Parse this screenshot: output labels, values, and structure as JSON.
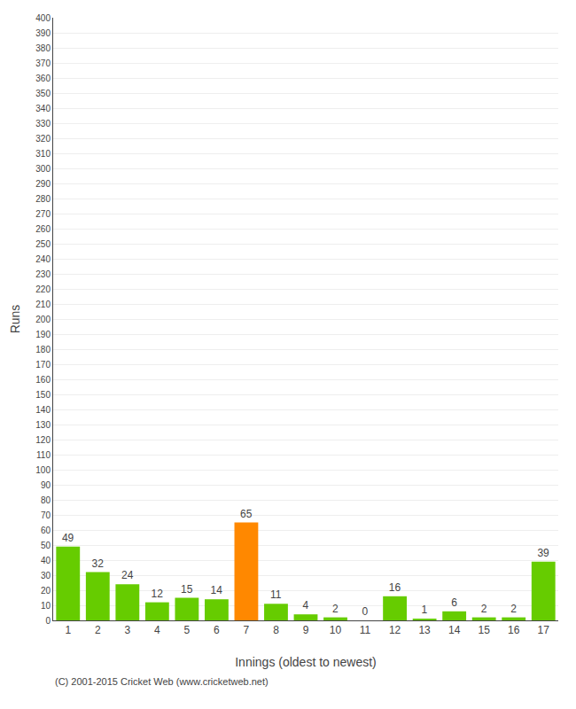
{
  "chart_data": {
    "type": "bar",
    "categories": [
      "1",
      "2",
      "3",
      "4",
      "5",
      "6",
      "7",
      "8",
      "9",
      "10",
      "11",
      "12",
      "13",
      "14",
      "15",
      "16",
      "17"
    ],
    "values": [
      49,
      32,
      24,
      12,
      15,
      14,
      65,
      11,
      4,
      2,
      0,
      16,
      1,
      6,
      2,
      2,
      39
    ],
    "colors": [
      "#66cc00",
      "#66cc00",
      "#66cc00",
      "#66cc00",
      "#66cc00",
      "#66cc00",
      "#ff8800",
      "#66cc00",
      "#66cc00",
      "#66cc00",
      "#66cc00",
      "#66cc00",
      "#66cc00",
      "#66cc00",
      "#66cc00",
      "#66cc00",
      "#66cc00"
    ],
    "ylabel": "Runs",
    "xlabel": "Innings (oldest to newest)",
    "ylim": [
      0,
      400
    ],
    "yticks": [
      0,
      10,
      20,
      30,
      40,
      50,
      60,
      70,
      80,
      90,
      100,
      110,
      120,
      130,
      140,
      150,
      160,
      170,
      180,
      190,
      200,
      210,
      220,
      230,
      240,
      250,
      260,
      270,
      280,
      290,
      300,
      310,
      320,
      330,
      340,
      350,
      360,
      370,
      380,
      390,
      400
    ],
    "grid": true,
    "data_labels": true,
    "annotations": [
      "(C) 2001-2015 Cricket Web (www.cricketweb.net)"
    ]
  }
}
